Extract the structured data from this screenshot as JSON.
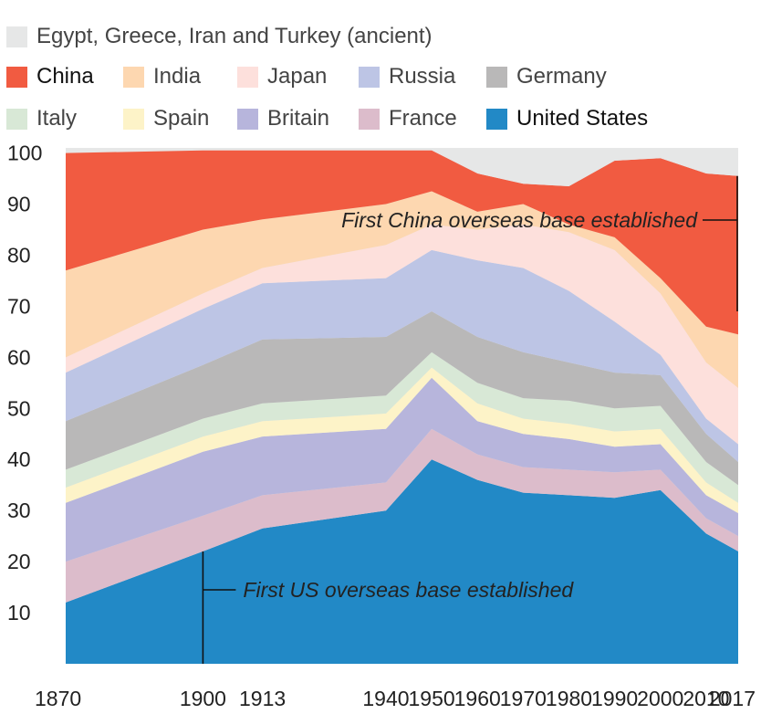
{
  "chart_data": {
    "type": "area",
    "stacked": true,
    "title": "",
    "xlabel": "",
    "ylabel": "",
    "x": [
      1870,
      1900,
      1913,
      1940,
      1950,
      1960,
      1970,
      1980,
      1990,
      2000,
      2010,
      2017
    ],
    "x_ticks": [
      "1870",
      "1900",
      "1913",
      "1940",
      "1950",
      "1960",
      "1970",
      "1980",
      "1990",
      "2000",
      "2010",
      "2017"
    ],
    "y_ticks": [
      "10",
      "20",
      "30",
      "40",
      "50",
      "60",
      "70",
      "80",
      "90",
      "100"
    ],
    "ylim": [
      0,
      101
    ],
    "grid": false,
    "legend_position": "top",
    "series": [
      {
        "name": "United States",
        "color": "#2289c6",
        "values": [
          12,
          22,
          26.5,
          30,
          40,
          36,
          33.5,
          33,
          32.5,
          34,
          25.5,
          22
        ]
      },
      {
        "name": "France",
        "color": "#dcbccb",
        "values": [
          8,
          7,
          6.5,
          5.5,
          6,
          5,
          5,
          5,
          5,
          4,
          3,
          3
        ]
      },
      {
        "name": "Britain",
        "color": "#b7b5dc",
        "values": [
          11.5,
          12.5,
          11.5,
          10.5,
          10,
          6.5,
          6.5,
          6,
          5,
          5,
          4.5,
          4.5
        ]
      },
      {
        "name": "Spain",
        "color": "#fdf3c8",
        "values": [
          3,
          3,
          3,
          3,
          2,
          3.5,
          3,
          3,
          3,
          3,
          2.5,
          2
        ]
      },
      {
        "name": "Italy",
        "color": "#d8e8d6",
        "values": [
          3.5,
          3.5,
          3.5,
          3.5,
          3,
          4,
          4,
          4.5,
          4.5,
          4.5,
          4,
          3.5
        ]
      },
      {
        "name": "Germany",
        "color": "#b9b8b8",
        "values": [
          9.5,
          10.5,
          12.5,
          11.5,
          8,
          9,
          9,
          7.5,
          7,
          6,
          5.5,
          4.5
        ]
      },
      {
        "name": "Russia",
        "color": "#bdc5e5",
        "values": [
          9.5,
          11,
          11,
          11.5,
          12,
          15,
          16.5,
          14,
          10,
          4,
          3,
          3.5
        ]
      },
      {
        "name": "Japan",
        "color": "#fde0dc",
        "values": [
          3,
          3,
          3,
          6.5,
          5,
          6,
          8.5,
          11.5,
          14,
          12,
          11,
          11
        ]
      },
      {
        "name": "India",
        "color": "#fdd7b0",
        "values": [
          17,
          12.5,
          9.5,
          8,
          6.5,
          3.5,
          4,
          1.5,
          2.5,
          3,
          7,
          10.5
        ]
      },
      {
        "name": "China",
        "color": "#f15b41",
        "values": [
          23,
          15.5,
          13.5,
          10.5,
          8,
          7.5,
          4,
          7.5,
          15,
          23.5,
          30,
          31
        ]
      },
      {
        "name": "Egypt, Greece, Iran and Turkey (ancient)",
        "color": "#e6e7e7",
        "values": [
          0,
          0,
          0,
          0,
          0,
          0,
          1,
          1,
          1,
          1,
          4,
          5.5
        ]
      }
    ],
    "annotations": [
      {
        "text": "First US overseas base established",
        "x": 1900,
        "y_from": 0,
        "y_to": 22
      },
      {
        "text": "First China overseas base established",
        "x": 2017,
        "y_from": 69,
        "y_to": 95.5
      }
    ]
  },
  "legend": {
    "rows": [
      [
        "Egypt, Greece, Iran and Turkey (ancient)"
      ],
      [
        "China",
        "India",
        "Japan",
        "Russia",
        "Germany"
      ],
      [
        "Italy",
        "Spain",
        "Britain",
        "France",
        "United States"
      ]
    ],
    "colors": {
      "Egypt, Greece, Iran and Turkey (ancient)": "#e6e7e7",
      "China": "#f15b41",
      "India": "#fdd7b0",
      "Japan": "#fde0dc",
      "Russia": "#bdc5e5",
      "Germany": "#b9b8b8",
      "Italy": "#d8e8d6",
      "Spain": "#fdf3c8",
      "Britain": "#b7b5dc",
      "France": "#dcbccb",
      "United States": "#2289c6"
    },
    "emphasized": [
      "China",
      "United States"
    ]
  },
  "background_color": "#e6e7e7"
}
